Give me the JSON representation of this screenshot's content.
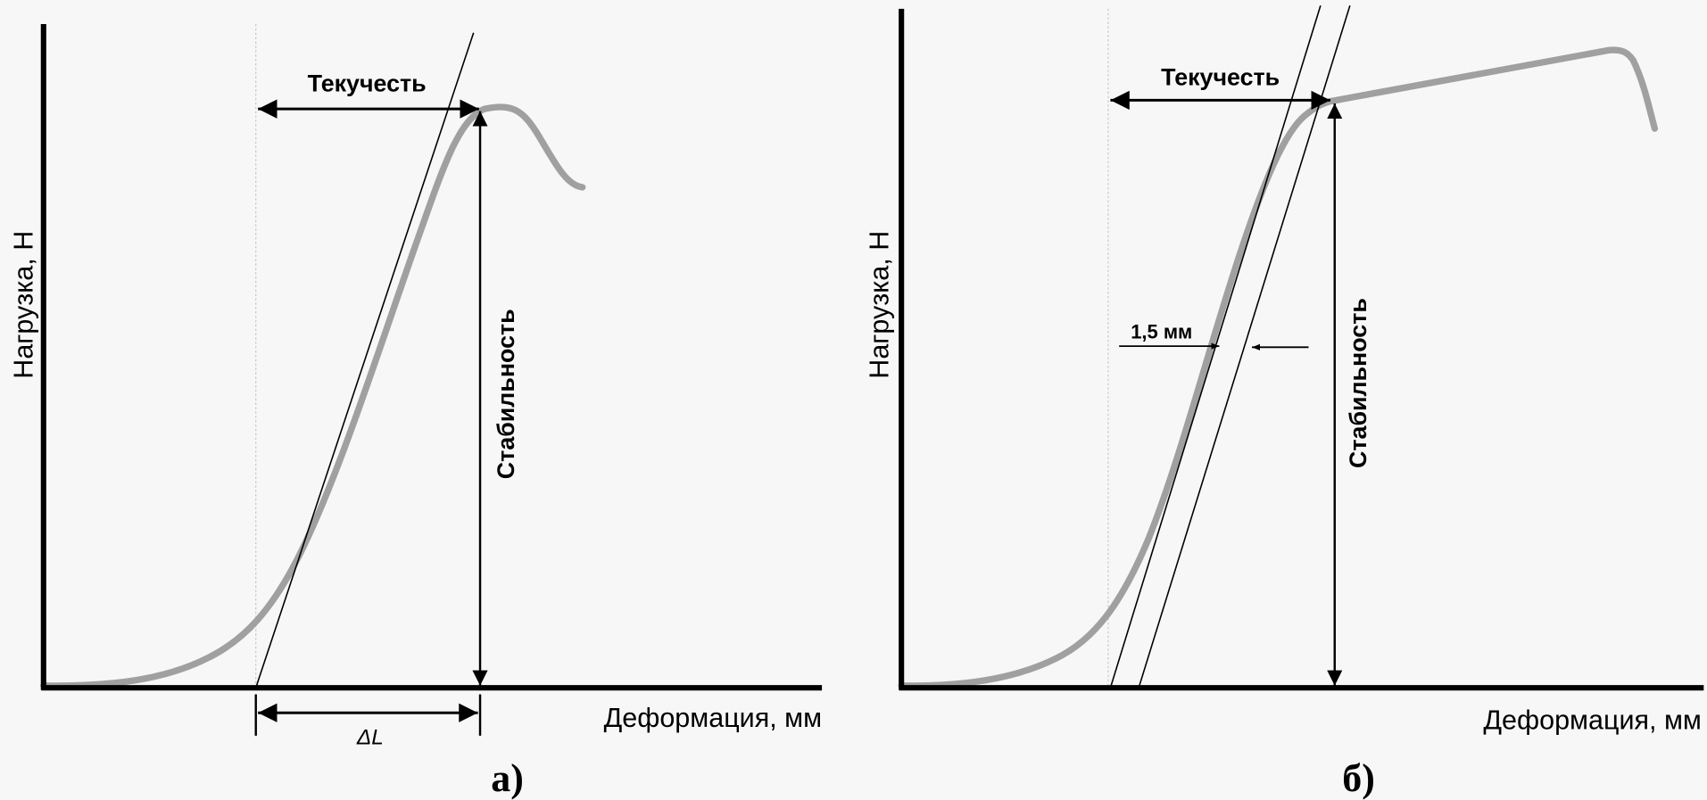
{
  "panels": [
    {
      "id": "a",
      "caption": "а)",
      "y_axis_label": "Нагрузка, Н",
      "x_axis_label": "Деформация, мм",
      "flow_label": "Текучесть",
      "stability_label": "Стабильность",
      "delta_label": "ΔL"
    },
    {
      "id": "b",
      "caption": "б)",
      "y_axis_label": "Нагрузка, Н",
      "x_axis_label": "Деформация, мм",
      "flow_label": "Текучесть",
      "stability_label": "Стабильность",
      "offset_label": "1,5 мм"
    }
  ],
  "colors": {
    "background": "#f7f7f7",
    "curve": "#a0a0a0",
    "axes": "#000000",
    "guide": "#c8c8c8"
  }
}
